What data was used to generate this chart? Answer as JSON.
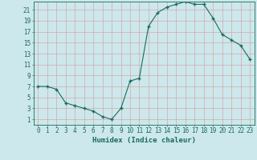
{
  "x": [
    0,
    1,
    2,
    3,
    4,
    5,
    6,
    7,
    8,
    9,
    10,
    11,
    12,
    13,
    14,
    15,
    16,
    17,
    18,
    19,
    20,
    21,
    22,
    23
  ],
  "y": [
    7,
    7,
    6.5,
    4,
    3.5,
    3,
    2.5,
    1.5,
    1,
    3,
    8,
    8.5,
    18,
    20.5,
    21.5,
    22,
    22.5,
    22,
    22,
    19.5,
    16.5,
    15.5,
    14.5,
    12
  ],
  "line_color": "#1a6b5a",
  "bg_color": "#cce8ec",
  "grid_color": "#aacccc",
  "xlabel": "Humidex (Indice chaleur)",
  "ylim": [
    0,
    22.5
  ],
  "xlim": [
    -0.5,
    23.5
  ],
  "yticks": [
    1,
    3,
    5,
    7,
    9,
    11,
    13,
    15,
    17,
    19,
    21
  ],
  "xticks": [
    0,
    1,
    2,
    3,
    4,
    5,
    6,
    7,
    8,
    9,
    10,
    11,
    12,
    13,
    14,
    15,
    16,
    17,
    18,
    19,
    20,
    21,
    22,
    23
  ],
  "tick_color": "#1a6b5a",
  "label_fontsize": 6.5,
  "tick_fontsize": 5.5
}
